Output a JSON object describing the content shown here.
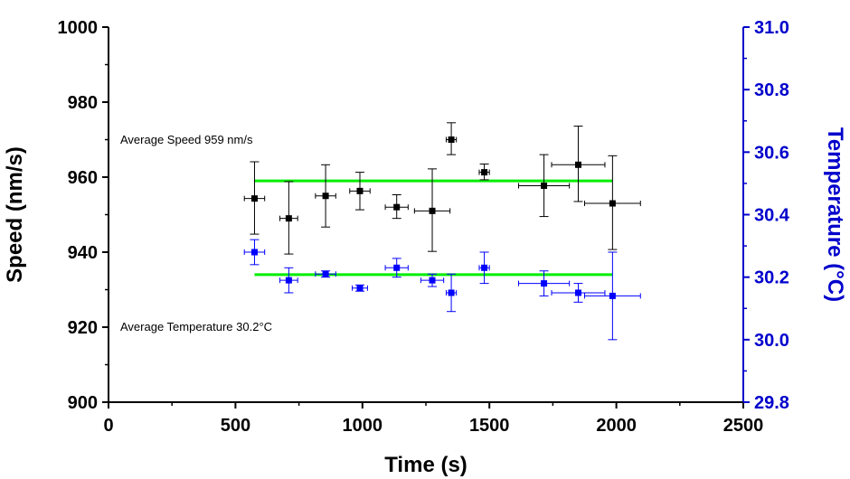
{
  "chart_data": {
    "type": "scatter",
    "xlabel": "Time (s)",
    "ylabel_left": "Speed (nm/s)",
    "ylabel_right": "Temperature (°C)",
    "xlim": [
      0,
      2500
    ],
    "ylim_left": [
      900,
      1000
    ],
    "ylim_right": [
      29.8,
      31.0
    ],
    "x_ticks": [
      "0",
      "500",
      "1000",
      "1500",
      "2000",
      "2500"
    ],
    "y_left_ticks": [
      "900",
      "920",
      "940",
      "960",
      "980",
      "1000"
    ],
    "y_right_ticks": [
      "29.8",
      "30.0",
      "30.2",
      "30.4",
      "30.6",
      "30.8",
      "31.0"
    ],
    "grid": false,
    "colors": {
      "speed": "#000000",
      "temperature": "#0000ff",
      "average_line": "#00ee00",
      "right_axis": "#0000cc"
    },
    "annotations": [
      {
        "id": "speed-avg",
        "text": "Average Speed 959 nm/s"
      },
      {
        "id": "temp-avg",
        "text": "Average Temperature 30.2°C"
      }
    ],
    "series": [
      {
        "axis": "left",
        "color": "#000000",
        "points": [
          {
            "x": 575,
            "y": 954.3,
            "xerr": 40,
            "yerr_low": 9.5,
            "yerr_high": 9.8
          },
          {
            "x": 710,
            "y": 949.0,
            "xerr": 35,
            "yerr_low": 9.5,
            "yerr_high": 9.8
          },
          {
            "x": 855,
            "y": 955.0,
            "xerr": 40,
            "yerr_low": 8.3,
            "yerr_high": 8.3
          },
          {
            "x": 990,
            "y": 956.3,
            "xerr": 40,
            "yerr_low": 5.0,
            "yerr_high": 5.0
          },
          {
            "x": 1135,
            "y": 952.0,
            "xerr": 45,
            "yerr_low": 3.0,
            "yerr_high": 3.3
          },
          {
            "x": 1275,
            "y": 951.0,
            "xerr": 70,
            "yerr_low": 10.8,
            "yerr_high": 11.2
          },
          {
            "x": 1350,
            "y": 970.0,
            "xerr": 20,
            "yerr_low": 4.0,
            "yerr_high": 4.5
          },
          {
            "x": 1480,
            "y": 961.3,
            "xerr": 20,
            "yerr_low": 2.0,
            "yerr_high": 2.2
          },
          {
            "x": 1715,
            "y": 957.7,
            "xerr": 100,
            "yerr_low": 8.2,
            "yerr_high": 8.3
          },
          {
            "x": 1850,
            "y": 963.3,
            "xerr": 105,
            "yerr_low": 9.8,
            "yerr_high": 10.3
          },
          {
            "x": 1985,
            "y": 953.0,
            "xerr": 110,
            "yerr_low": 12.3,
            "yerr_high": 12.7
          }
        ]
      },
      {
        "axis": "right",
        "color": "#0000ff",
        "points": [
          {
            "x": 575,
            "y": 30.28,
            "xerr": 40,
            "yerr_low": 0.04,
            "yerr_high": 0.04
          },
          {
            "x": 710,
            "y": 30.19,
            "xerr": 35,
            "yerr_low": 0.04,
            "yerr_high": 0.04
          },
          {
            "x": 855,
            "y": 30.21,
            "xerr": 40,
            "yerr_low": 0.01,
            "yerr_high": 0.01
          },
          {
            "x": 990,
            "y": 30.165,
            "xerr": 30,
            "yerr_low": 0.01,
            "yerr_high": 0.01
          },
          {
            "x": 1135,
            "y": 30.23,
            "xerr": 45,
            "yerr_low": 0.03,
            "yerr_high": 0.03
          },
          {
            "x": 1275,
            "y": 30.19,
            "xerr": 45,
            "yerr_low": 0.02,
            "yerr_high": 0.02
          },
          {
            "x": 1350,
            "y": 30.15,
            "xerr": 20,
            "yerr_low": 0.06,
            "yerr_high": 0.06
          },
          {
            "x": 1480,
            "y": 30.23,
            "xerr": 20,
            "yerr_low": 0.05,
            "yerr_high": 0.05
          },
          {
            "x": 1715,
            "y": 30.18,
            "xerr": 100,
            "yerr_low": 0.04,
            "yerr_high": 0.04
          },
          {
            "x": 1850,
            "y": 30.15,
            "xerr": 105,
            "yerr_low": 0.03,
            "yerr_high": 0.03
          },
          {
            "x": 1985,
            "y": 30.14,
            "xerr": 110,
            "yerr_low": 0.14,
            "yerr_high": 0.14
          }
        ]
      }
    ],
    "average_lines": [
      {
        "axis": "left",
        "value": 959,
        "x_start": 575,
        "x_end": 1985
      },
      {
        "axis": "left",
        "value": 934,
        "x_start": 575,
        "x_end": 1985
      }
    ]
  }
}
